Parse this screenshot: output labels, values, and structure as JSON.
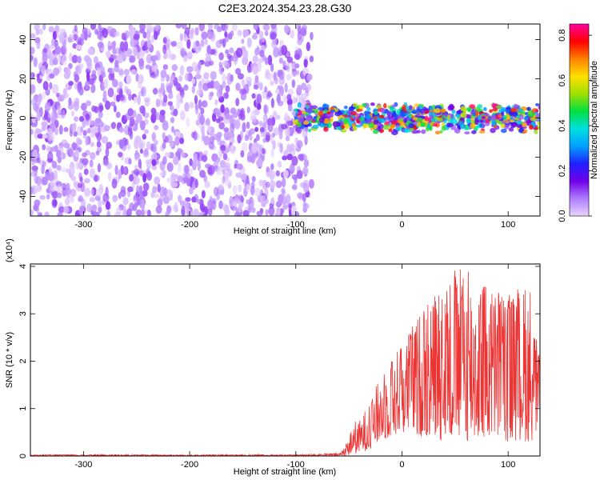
{
  "title": "C2E3.2024.354.23.28.G30",
  "chart_data": [
    {
      "type": "heatmap",
      "xlabel": "Height of straight line (km)",
      "ylabel": "Frequency (Hz)",
      "xlim": [
        -350,
        130
      ],
      "ylim": [
        -50,
        48
      ],
      "xticks": [
        -300,
        -200,
        -100,
        0,
        100
      ],
      "yticks": [
        -40,
        -20,
        0,
        20,
        40
      ],
      "colorbar": {
        "label": "Normalized spectral amplitude",
        "range": [
          0.0,
          0.85
        ],
        "ticks": [
          "0.0",
          "0.2",
          "0.4",
          "0.6",
          "0.8"
        ],
        "colormap": [
          "#e8d5ff",
          "#b07cff",
          "#7000e8",
          "#2020ff",
          "#00a0ff",
          "#00e0e0",
          "#00e040",
          "#a0e000",
          "#ffe000",
          "#ff8000",
          "#ff0000",
          "#ff00a0"
        ]
      },
      "regions": [
        {
          "x_range": [
            -350,
            -85
          ],
          "y_range": [
            -50,
            48
          ],
          "amplitude_range": [
            0.0,
            0.12
          ]
        },
        {
          "x_range": [
            -100,
            130
          ],
          "y_center": 0,
          "y_halfwidth": 8,
          "amplitude_range": [
            0.1,
            0.85
          ]
        }
      ]
    },
    {
      "type": "line",
      "xlabel": "Height of straight line (km)",
      "ylabel": "SNR (10 * v/v)",
      "y_multiplier": "(x10⁴)",
      "xlim": [
        -350,
        130
      ],
      "ylim": [
        0,
        4.05
      ],
      "xticks": [
        -300,
        -200,
        -100,
        0,
        100
      ],
      "yticks": [
        0,
        1,
        2,
        3,
        4
      ],
      "series": [
        {
          "color": "#ee3333",
          "x": [
            -350,
            -100,
            -60,
            -55,
            -50,
            -45,
            -40,
            -30,
            -20,
            -10,
            0,
            20,
            40,
            60,
            80,
            100,
            120,
            130
          ],
          "max": [
            0.03,
            0.03,
            0.06,
            0.15,
            0.4,
            0.75,
            0.75,
            1.2,
            1.7,
            2.1,
            2.4,
            3.2,
            3.9,
            4.0,
            3.7,
            3.5,
            3.6,
            2.0
          ],
          "min": [
            0.0,
            0.0,
            0.0,
            0.0,
            0.02,
            0.05,
            0.05,
            0.15,
            0.3,
            0.4,
            0.5,
            0.4,
            0.3,
            0.3,
            0.3,
            0.3,
            0.3,
            0.4
          ]
        }
      ]
    }
  ]
}
